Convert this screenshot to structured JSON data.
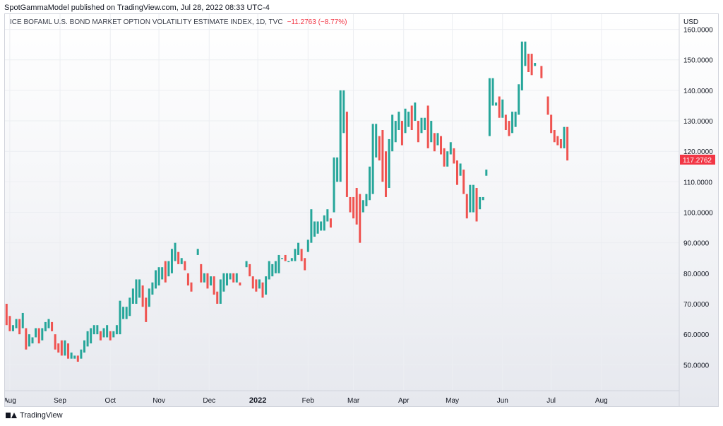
{
  "header": {
    "published": "SpotGammaModel published on TradingView.com, Jul 28, 2022 08:33 UTC-4"
  },
  "legend": {
    "symbol": "ICE BOFAML U.S. BOND MARKET OPTION VOLATILITY ESTIMATE INDEX, 1D, TVC",
    "change": "−11.2763 (−8.77%)"
  },
  "footer": {
    "brand": "TradingView"
  },
  "colors": {
    "up": "#26a69a",
    "down": "#ef5350",
    "axis_text": "#131722",
    "last_price_bg": "#f23645"
  },
  "chart_data": {
    "type": "line",
    "subtype": "ohlc_bars",
    "currency": "USD",
    "y_ticks": [
      "50.0000",
      "60.0000",
      "70.0000",
      "80.0000",
      "90.0000",
      "100.0000",
      "110.0000",
      "120.0000",
      "130.0000",
      "140.0000",
      "150.0000",
      "160.0000"
    ],
    "y_tick_values": [
      50,
      60,
      70,
      80,
      90,
      100,
      110,
      120,
      130,
      140,
      150,
      160
    ],
    "ylim": [
      41.5,
      165
    ],
    "x_labels": [
      "Aug",
      "Sep",
      "Oct",
      "Nov",
      "Dec",
      "2022",
      "Feb",
      "Mar",
      "Apr",
      "May",
      "Jun",
      "Jul",
      "Aug"
    ],
    "x_label_days": [
      0,
      31,
      62,
      92,
      123,
      153,
      184,
      212,
      243,
      273,
      304,
      334,
      365
    ],
    "x_range_days": [
      -3,
      413
    ],
    "last_price": "117.2762",
    "last_value": 117.2762,
    "grid": true,
    "bars": [
      [
        -2,
        70,
        63
      ],
      [
        0,
        66,
        61
      ],
      [
        2,
        63,
        61
      ],
      [
        4,
        65,
        62
      ],
      [
        6,
        65,
        60
      ],
      [
        8,
        67,
        62
      ],
      [
        10,
        62,
        55
      ],
      [
        12,
        60,
        56
      ],
      [
        14,
        59,
        57
      ],
      [
        16,
        62,
        59
      ],
      [
        18,
        62,
        57
      ],
      [
        20,
        62,
        58
      ],
      [
        22,
        64,
        61
      ],
      [
        24,
        65,
        62
      ],
      [
        26,
        64,
        61
      ],
      [
        28,
        60,
        55
      ],
      [
        30,
        57,
        54
      ],
      [
        32,
        58,
        53
      ],
      [
        34,
        58,
        53
      ],
      [
        36,
        57,
        52
      ],
      [
        38,
        54,
        52
      ],
      [
        40,
        53,
        52
      ],
      [
        42,
        53,
        51
      ],
      [
        44,
        55,
        52
      ],
      [
        46,
        58,
        54
      ],
      [
        48,
        61,
        56
      ],
      [
        50,
        62,
        57
      ],
      [
        52,
        63,
        60
      ],
      [
        54,
        63,
        60
      ],
      [
        56,
        61,
        58
      ],
      [
        58,
        62,
        59
      ],
      [
        60,
        63,
        59
      ],
      [
        62,
        61,
        58
      ],
      [
        64,
        61,
        59
      ],
      [
        66,
        63,
        60
      ],
      [
        68,
        71,
        60
      ],
      [
        70,
        69,
        65
      ],
      [
        72,
        69,
        65
      ],
      [
        74,
        72,
        66
      ],
      [
        76,
        75,
        70
      ],
      [
        78,
        78,
        70
      ],
      [
        80,
        78,
        72
      ],
      [
        82,
        76,
        69
      ],
      [
        84,
        72,
        64
      ],
      [
        86,
        75,
        69
      ],
      [
        88,
        77,
        73
      ],
      [
        90,
        81,
        75
      ],
      [
        92,
        82,
        76
      ],
      [
        94,
        82,
        78
      ],
      [
        96,
        84,
        77
      ],
      [
        98,
        84,
        79
      ],
      [
        100,
        88,
        80
      ],
      [
        102,
        90,
        84
      ],
      [
        104,
        87,
        83
      ],
      [
        106,
        85,
        83
      ],
      [
        108,
        84,
        81
      ],
      [
        110,
        80,
        76
      ],
      [
        112,
        77,
        74
      ],
      [
        116,
        88,
        86
      ],
      [
        118,
        83,
        77
      ],
      [
        120,
        80,
        77
      ],
      [
        122,
        80,
        75
      ],
      [
        124,
        79,
        76
      ],
      [
        126,
        79,
        73
      ],
      [
        128,
        74,
        70
      ],
      [
        130,
        78,
        70
      ],
      [
        132,
        80,
        74
      ],
      [
        134,
        80,
        76
      ],
      [
        136,
        80,
        78
      ],
      [
        138,
        80,
        77
      ],
      [
        140,
        80,
        77
      ],
      [
        142,
        77,
        76
      ],
      [
        146,
        84,
        82
      ],
      [
        148,
        83,
        79
      ],
      [
        150,
        79,
        75
      ],
      [
        152,
        78,
        74
      ],
      [
        154,
        78,
        75
      ],
      [
        156,
        77,
        72
      ],
      [
        158,
        79,
        73
      ],
      [
        160,
        84,
        78
      ],
      [
        162,
        83,
        79
      ],
      [
        164,
        84,
        80
      ],
      [
        166,
        86,
        80
      ],
      [
        168,
        85,
        85
      ],
      [
        170,
        86,
        84
      ],
      [
        172,
        84,
        84
      ],
      [
        174,
        85,
        84
      ],
      [
        176,
        88,
        84
      ],
      [
        178,
        90,
        86
      ],
      [
        180,
        88,
        84
      ],
      [
        182,
        85,
        81
      ],
      [
        184,
        91,
        87
      ],
      [
        186,
        101,
        90
      ],
      [
        188,
        97,
        92
      ],
      [
        190,
        97,
        93
      ],
      [
        192,
        97,
        94
      ],
      [
        194,
        99,
        94
      ],
      [
        196,
        101,
        97
      ],
      [
        198,
        98,
        95
      ],
      [
        200,
        118,
        100
      ],
      [
        202,
        118,
        110
      ],
      [
        204,
        140,
        110
      ],
      [
        206,
        140,
        126
      ],
      [
        208,
        133,
        105
      ],
      [
        210,
        105,
        100
      ],
      [
        212,
        105,
        98
      ],
      [
        214,
        108,
        96
      ],
      [
        216,
        106,
        90
      ],
      [
        218,
        104,
        100
      ],
      [
        220,
        106,
        102
      ],
      [
        222,
        115,
        104
      ],
      [
        224,
        129,
        106
      ],
      [
        226,
        129,
        118
      ],
      [
        228,
        125,
        117
      ],
      [
        230,
        127,
        110
      ],
      [
        232,
        120,
        105
      ],
      [
        234,
        124,
        108
      ],
      [
        236,
        132,
        120
      ],
      [
        238,
        130,
        123
      ],
      [
        240,
        133,
        127
      ],
      [
        242,
        130,
        122
      ],
      [
        244,
        134,
        126
      ],
      [
        246,
        133,
        128
      ],
      [
        248,
        135,
        127
      ],
      [
        250,
        136,
        130
      ],
      [
        252,
        130,
        123
      ],
      [
        254,
        131,
        126
      ],
      [
        256,
        131,
        127
      ],
      [
        258,
        135,
        121
      ],
      [
        260,
        130,
        123
      ],
      [
        262,
        126,
        120
      ],
      [
        264,
        126,
        122
      ],
      [
        266,
        125,
        119
      ],
      [
        268,
        121,
        115
      ],
      [
        270,
        120,
        115
      ],
      [
        272,
        123,
        119
      ],
      [
        274,
        121,
        116
      ],
      [
        276,
        117,
        109
      ],
      [
        278,
        116,
        112
      ],
      [
        280,
        114,
        106
      ],
      [
        282,
        106,
        98
      ],
      [
        284,
        109,
        100
      ],
      [
        286,
        109,
        100
      ],
      [
        288,
        108,
        97
      ],
      [
        290,
        105,
        101
      ],
      [
        292,
        105,
        104
      ],
      [
        294,
        114,
        112
      ],
      [
        296,
        144,
        125
      ],
      [
        298,
        144,
        135
      ],
      [
        300,
        136,
        135
      ],
      [
        302,
        138,
        131
      ],
      [
        304,
        137,
        131
      ],
      [
        306,
        132,
        127
      ],
      [
        308,
        130,
        125
      ],
      [
        310,
        133,
        126
      ],
      [
        312,
        133,
        128
      ],
      [
        314,
        142,
        132
      ],
      [
        316,
        156,
        140
      ],
      [
        318,
        156,
        148
      ],
      [
        320,
        152,
        146
      ],
      [
        322,
        152,
        145
      ],
      [
        324,
        149,
        148
      ],
      [
        328,
        148,
        144
      ],
      [
        332,
        138,
        132
      ],
      [
        334,
        132,
        126
      ],
      [
        336,
        127,
        123
      ],
      [
        338,
        125,
        122
      ],
      [
        340,
        124,
        121
      ],
      [
        342,
        128,
        121
      ],
      [
        344,
        128,
        117
      ]
    ]
  }
}
